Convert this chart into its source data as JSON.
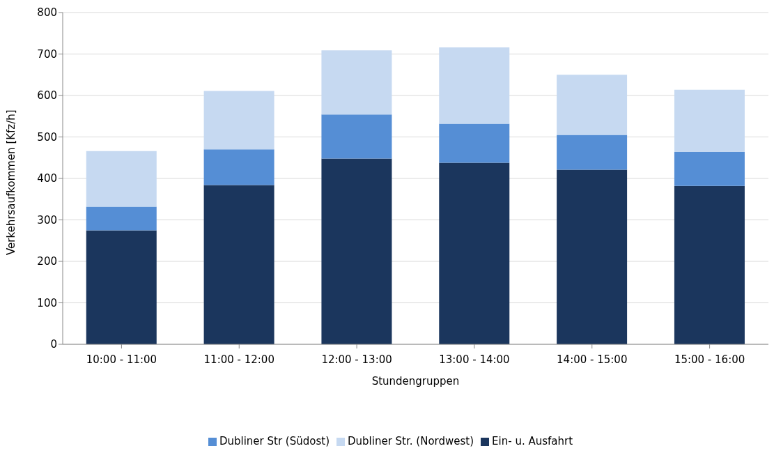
{
  "chart_data": {
    "type": "bar",
    "stacked": true,
    "xlabel": "Stundengruppen",
    "ylabel": "Verkehrsaufkommen [Kfz/h]",
    "categories": [
      "10:00 - 11:00",
      "11:00 - 12:00",
      "12:00 - 13:00",
      "13:00 - 14:00",
      "14:00 - 15:00",
      "15:00 - 16:00"
    ],
    "series": [
      {
        "name": "Ein- u. Ausfahrt",
        "color": "#1b365d",
        "values": [
          275,
          384,
          448,
          438,
          421,
          382
        ]
      },
      {
        "name": "Dubliner Str (Südost)",
        "color": "#558ed5",
        "values": [
          57,
          86,
          106,
          94,
          84,
          82
        ]
      },
      {
        "name": "Dubliner Str. (Nordwest)",
        "color": "#c6d9f1",
        "values": [
          134,
          141,
          155,
          184,
          145,
          150
        ]
      }
    ],
    "ylim": [
      0,
      800
    ],
    "yticks": [
      0,
      100,
      200,
      300,
      400,
      500,
      600,
      700,
      800
    ],
    "grid": "y",
    "legend": "bottom"
  }
}
